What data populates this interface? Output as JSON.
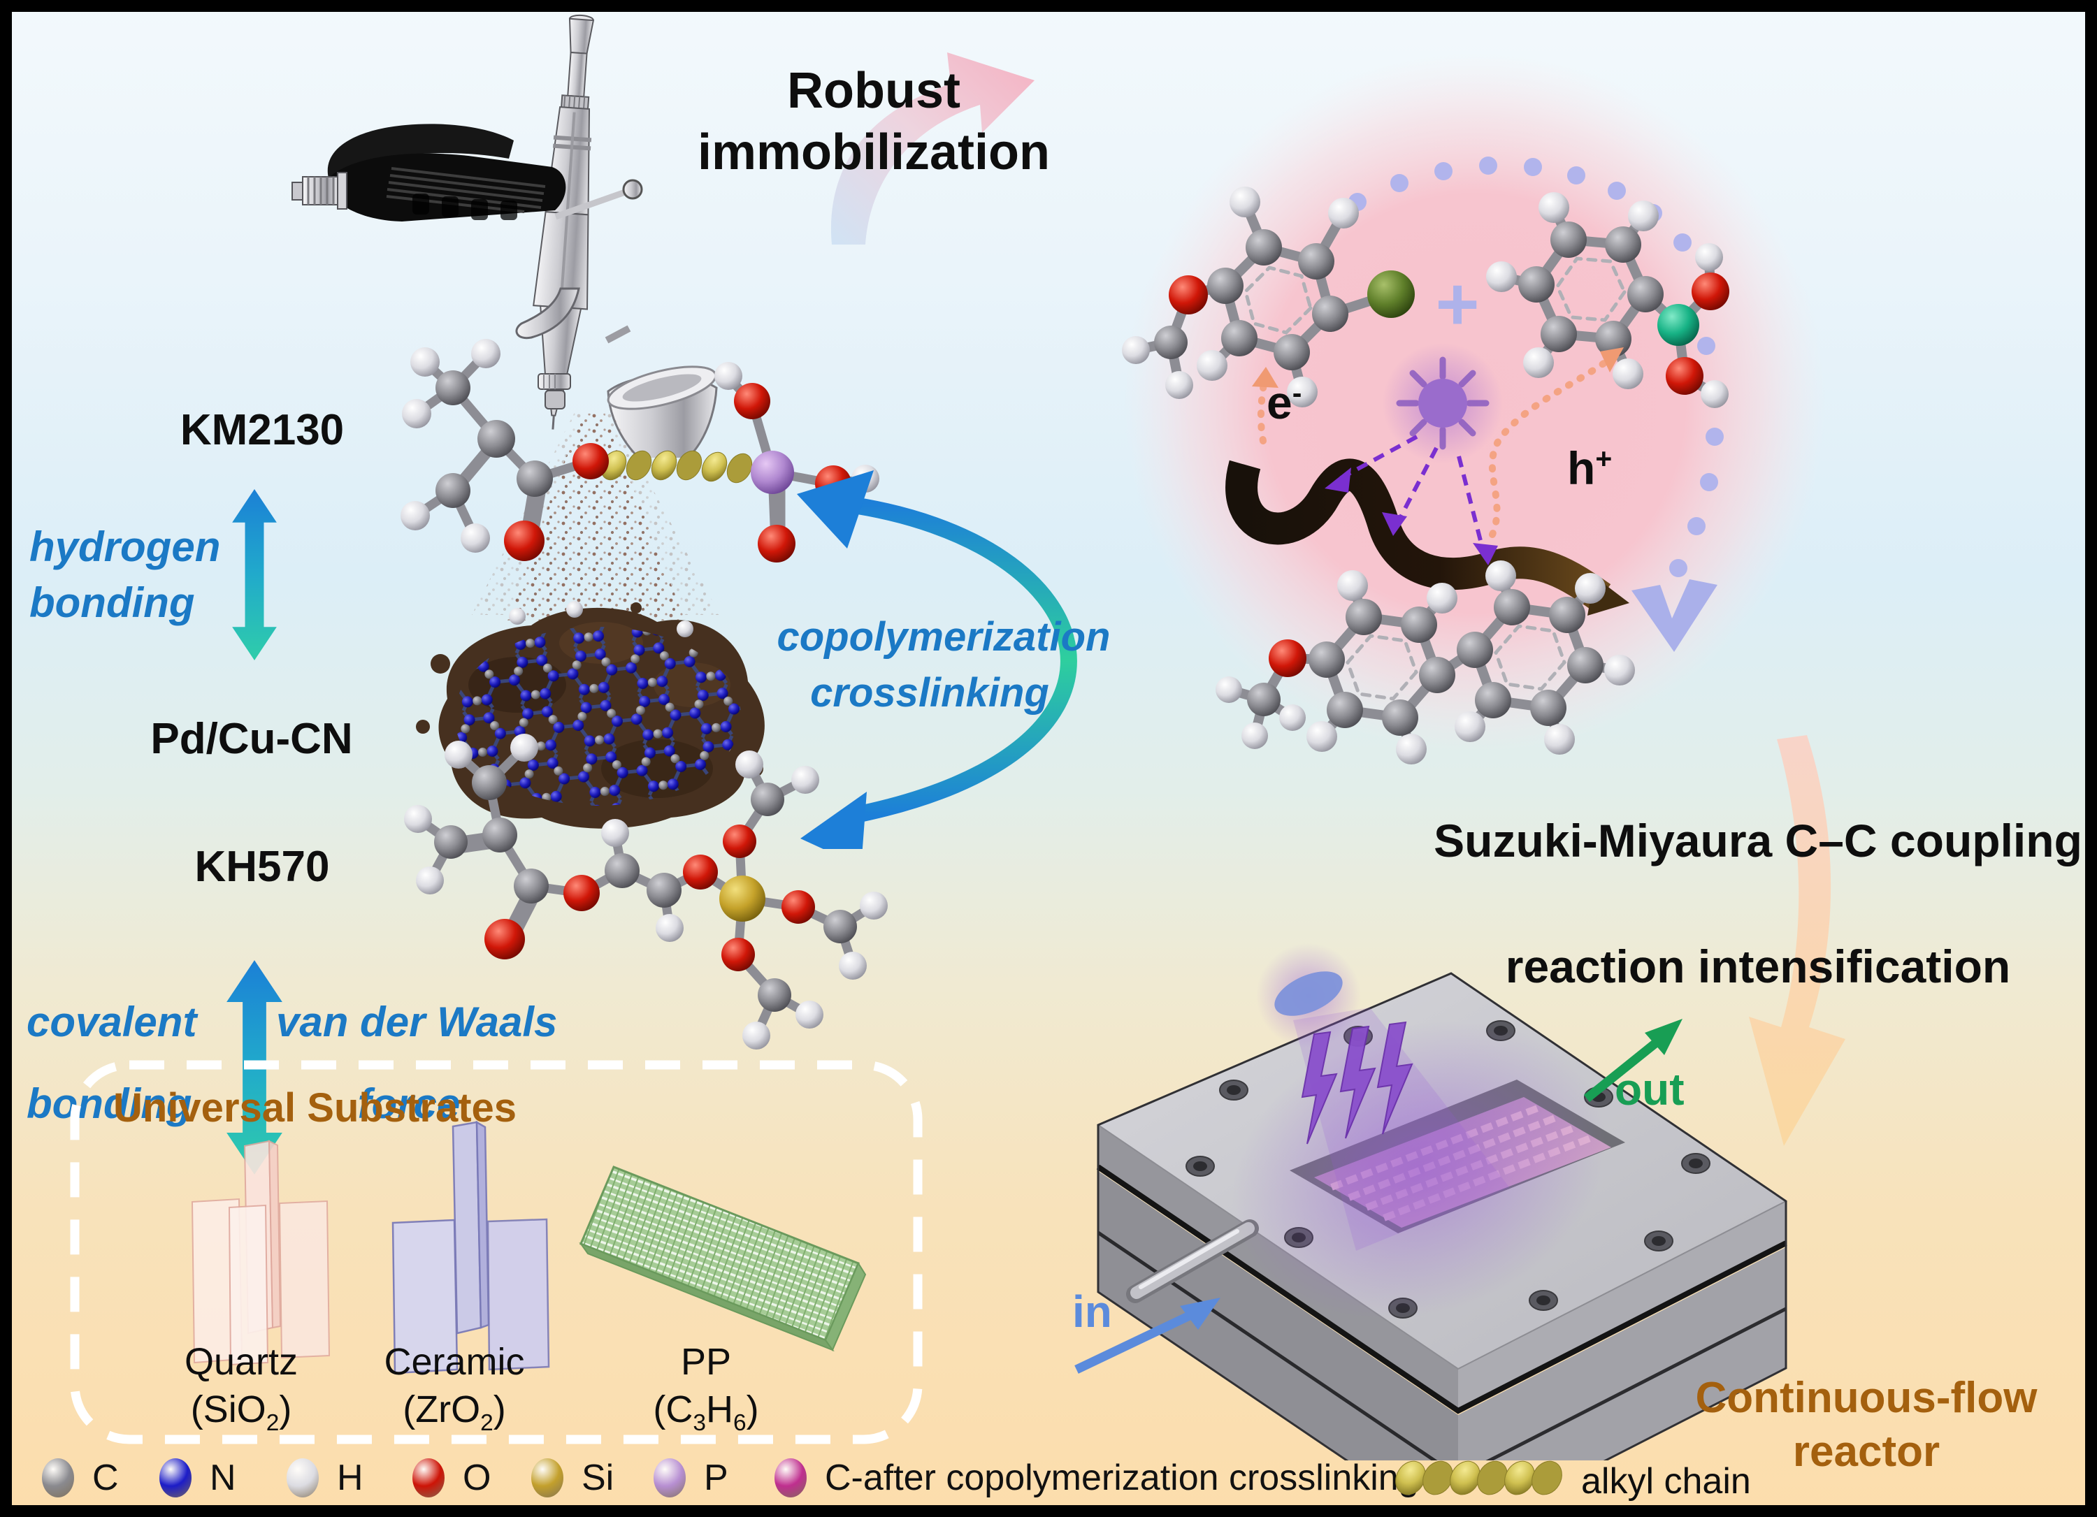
{
  "header": {
    "robust_line1": "Robust",
    "robust_line2": "immobilization"
  },
  "left": {
    "km2130": "KM2130",
    "hydrogen_line1": "hydrogen",
    "hydrogen_line2": "bonding",
    "pd_cu_cn": "Pd/Cu-CN",
    "copoly_line1": "copolymerization",
    "copoly_line2": "crosslinking",
    "kh570": "KH570",
    "covalent_line1": "covalent",
    "covalent_line2": "bonding",
    "vdw_line1": "van der Waals",
    "vdw_line2": "force"
  },
  "reaction": {
    "plus": "+",
    "electron_base": "e",
    "electron_sup": "-",
    "hole_base": "h",
    "hole_sup": "+",
    "title_line1": "Suzuki-Miyaura C–C coupling",
    "title_line2": "reaction intensification"
  },
  "substrates": {
    "title": "Universal Substrates",
    "items": [
      {
        "name": "Quartz",
        "formula": [
          {
            "t": "(SiO"
          },
          {
            "t": "2",
            "sub": true
          },
          {
            "t": ")"
          }
        ]
      },
      {
        "name": "Ceramic",
        "formula": [
          {
            "t": "(ZrO"
          },
          {
            "t": "2",
            "sub": true
          },
          {
            "t": ")"
          }
        ]
      },
      {
        "name": "PP",
        "formula": [
          {
            "t": "(C"
          },
          {
            "t": "3",
            "sub": true
          },
          {
            "t": "H"
          },
          {
            "t": "6",
            "sub": true
          },
          {
            "t": ")"
          }
        ]
      }
    ]
  },
  "reactor": {
    "in_label": "in",
    "out_label": "out",
    "name_line1": "Continuous-flow",
    "name_line2": "reactor"
  },
  "legend": {
    "atoms": [
      {
        "label": "C",
        "color": "#8a8a8f"
      },
      {
        "label": "N",
        "color": "#1c1cc8"
      },
      {
        "label": "H",
        "color": "#dcdce2"
      },
      {
        "label": "O",
        "color": "#cd1407"
      },
      {
        "label": "Si",
        "color": "#c3a02c"
      },
      {
        "label": "P",
        "color": "#b78fd2"
      },
      {
        "label": "C-after copolymerization crosslinking",
        "color": "#bf2f8f"
      }
    ],
    "alkyl": {
      "label": "alkyl chain",
      "color": "#d9ca5f"
    }
  },
  "palette": {
    "blue_text": "#1b79c5",
    "brown_text": "#a4600e",
    "green_out": "#189e54",
    "blue_in": "#5b8bdc",
    "pink_halo": "#f7c3cd",
    "lavender": "#aeb2ea"
  }
}
